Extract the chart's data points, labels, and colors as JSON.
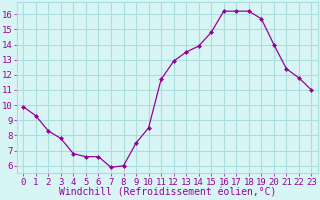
{
  "x": [
    0,
    1,
    2,
    3,
    4,
    5,
    6,
    7,
    8,
    9,
    10,
    11,
    12,
    13,
    14,
    15,
    16,
    17,
    18,
    19,
    20,
    21,
    22,
    23
  ],
  "y": [
    9.9,
    9.3,
    8.3,
    7.8,
    6.8,
    6.6,
    6.6,
    5.9,
    6.0,
    7.5,
    8.5,
    11.7,
    12.9,
    13.5,
    13.9,
    14.8,
    16.2,
    16.2,
    16.2,
    15.7,
    14.0,
    12.4,
    11.8,
    11.0
  ],
  "line_color": "#990099",
  "marker": "D",
  "marker_size": 2,
  "bg_color": "#d8f5f5",
  "grid_color": "#aadddd",
  "xlabel": "Windchill (Refroidissement éolien,°C)",
  "xlabel_color": "#990099",
  "xlabel_fontsize": 7,
  "ylabel_ticks": [
    6,
    7,
    8,
    9,
    10,
    11,
    12,
    13,
    14,
    15,
    16
  ],
  "xlim": [
    -0.5,
    23.5
  ],
  "ylim": [
    5.5,
    16.8
  ],
  "tick_color": "#990099",
  "tick_fontsize": 6.5
}
